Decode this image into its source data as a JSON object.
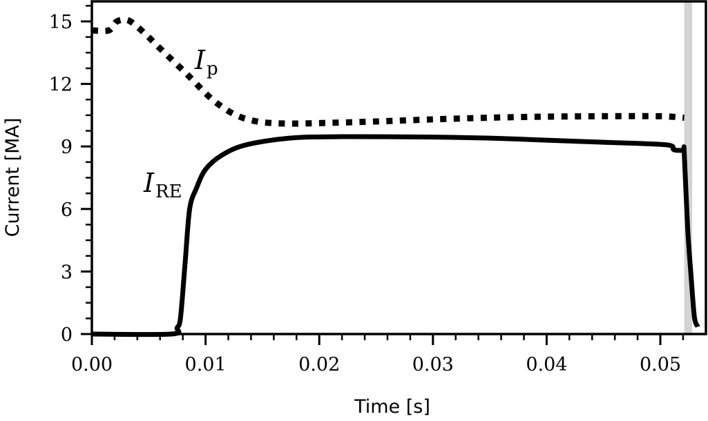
{
  "chart_data": {
    "type": "line",
    "title": "",
    "xlabel": "Time [s]",
    "ylabel": "Current [MA]",
    "xlim": [
      0.0,
      0.054
    ],
    "ylim": [
      0,
      16
    ],
    "x_ticks": [
      "0.00",
      "0.01",
      "0.02",
      "0.03",
      "0.04",
      "0.05"
    ],
    "x_tick_values": [
      0.0,
      0.01,
      0.02,
      0.03,
      0.04,
      0.05
    ],
    "y_ticks": [
      "0",
      "3",
      "6",
      "9",
      "12",
      "15"
    ],
    "y_tick_values": [
      0,
      3,
      6,
      9,
      12,
      15
    ],
    "grid": false,
    "legend": "none (inline annotations)",
    "shaded_region": {
      "x_start": 0.0521,
      "x_end": 0.0528,
      "color": "#d3d3d3"
    },
    "series": [
      {
        "name": "I_p",
        "annotation": "I_p",
        "style": "dotted",
        "color": "#000000",
        "x": [
          0.0,
          0.0015,
          0.0022,
          0.0032,
          0.0045,
          0.006,
          0.0083,
          0.0105,
          0.0125,
          0.0145,
          0.017,
          0.02,
          0.025,
          0.03,
          0.035,
          0.04,
          0.045,
          0.05,
          0.0521
        ],
        "y": [
          14.57,
          14.57,
          15.0,
          15.05,
          14.5,
          13.7,
          12.5,
          11.3,
          10.55,
          10.2,
          10.1,
          10.12,
          10.2,
          10.3,
          10.38,
          10.43,
          10.45,
          10.45,
          10.38
        ]
      },
      {
        "name": "I_RE",
        "annotation": "I_RE",
        "style": "solid",
        "color": "#000000",
        "x": [
          0.0,
          0.007,
          0.0075,
          0.0078,
          0.0082,
          0.0086,
          0.0092,
          0.01,
          0.0114,
          0.0135,
          0.0174,
          0.022,
          0.03,
          0.035,
          0.04,
          0.045,
          0.0505,
          0.0512,
          0.052,
          0.0521,
          0.0524,
          0.0527,
          0.053,
          0.0533
        ],
        "y": [
          0.0,
          0.0,
          0.3,
          0.8,
          3.4,
          6.0,
          7.0,
          7.9,
          8.57,
          9.07,
          9.4,
          9.47,
          9.45,
          9.4,
          9.3,
          9.2,
          9.08,
          8.84,
          8.8,
          8.7,
          5.1,
          2.8,
          0.8,
          0.35
        ]
      }
    ],
    "annotations": [
      {
        "text": "I",
        "subscript": "p",
        "x": 0.0093,
        "y": 12.8
      },
      {
        "text": "I",
        "subscript": "RE",
        "x": 0.0047,
        "y": 7.0
      }
    ]
  },
  "labels": {
    "xlabel": "Time [s]",
    "ylabel": "Current [MA]",
    "ip_main": "I",
    "ip_sub": "p",
    "ire_main": "I",
    "ire_sub": "RE"
  }
}
